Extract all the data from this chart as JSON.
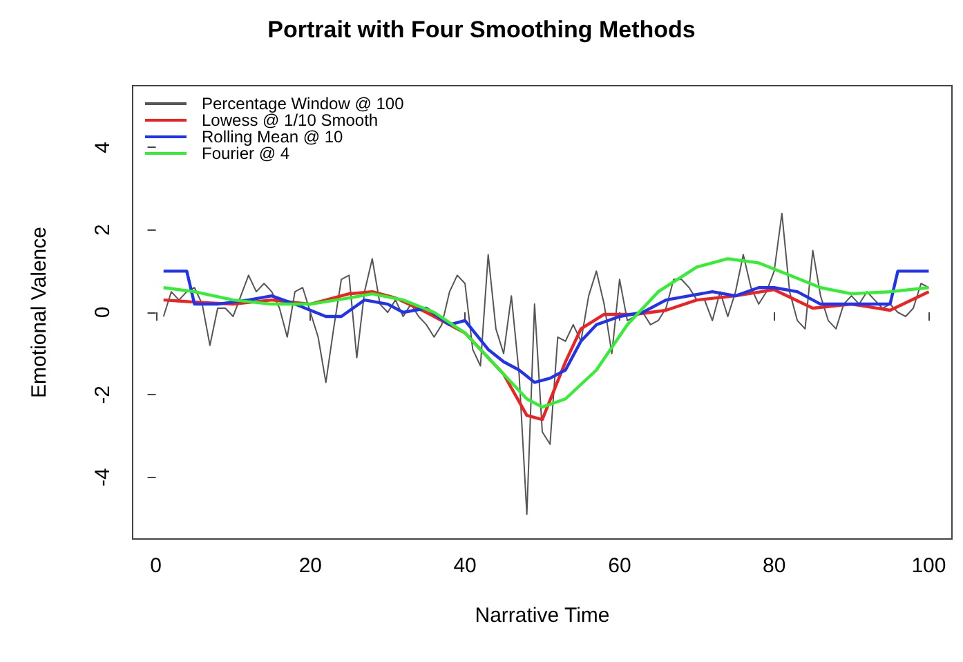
{
  "chart_data": {
    "type": "line",
    "title": "Portrait with Four Smoothing Methods",
    "xlabel": "Narrative Time",
    "ylabel": "Emotional Valence",
    "xlim": [
      -3,
      103
    ],
    "xticks": [
      0,
      20,
      40,
      60,
      80,
      100
    ],
    "ylim": [
      -5.5,
      5.5
    ],
    "yticks": [
      -4,
      -2,
      0,
      2,
      4
    ],
    "legend": "top left",
    "grid": false,
    "marker": "none",
    "line_style": "solid",
    "series": [
      {
        "name": "Percentage Window @ 100",
        "color": "#555555",
        "x": [
          1,
          2,
          3,
          4,
          5,
          6,
          7,
          8,
          9,
          10,
          11,
          12,
          13,
          14,
          15,
          16,
          17,
          18,
          19,
          20,
          21,
          22,
          23,
          24,
          25,
          26,
          27,
          28,
          29,
          30,
          31,
          32,
          33,
          34,
          35,
          36,
          37,
          38,
          39,
          40,
          41,
          42,
          43,
          44,
          45,
          46,
          47,
          48,
          49,
          50,
          51,
          52,
          53,
          54,
          55,
          56,
          57,
          58,
          59,
          60,
          61,
          62,
          63,
          64,
          65,
          66,
          67,
          68,
          69,
          70,
          71,
          72,
          73,
          74,
          75,
          76,
          77,
          78,
          79,
          80,
          81,
          82,
          83,
          84,
          85,
          86,
          87,
          88,
          89,
          90,
          91,
          92,
          93,
          94,
          95,
          96,
          97,
          98,
          99,
          100
        ],
        "values": [
          -0.1,
          0.5,
          0.3,
          0.5,
          0.6,
          0.2,
          -0.8,
          0.1,
          0.1,
          -0.1,
          0.4,
          0.9,
          0.5,
          0.7,
          0.5,
          0.1,
          -0.6,
          0.5,
          0.6,
          0,
          -0.6,
          -1.7,
          -0.4,
          0.8,
          0.9,
          -1.1,
          0.5,
          1.3,
          0.2,
          0,
          0.3,
          -0.1,
          0.2,
          -0.1,
          -0.3,
          -0.6,
          -0.3,
          0.5,
          0.9,
          0.7,
          -0.9,
          -1.3,
          1.4,
          -0.4,
          -1,
          0.4,
          -1.5,
          -4.9,
          0.2,
          -2.9,
          -3.2,
          -0.6,
          -0.7,
          -0.3,
          -0.7,
          0.4,
          1,
          0.2,
          -1,
          0.8,
          -0.2,
          -0.1,
          0,
          -0.3,
          -0.2,
          0.1,
          0.8,
          0.8,
          0.6,
          0.3,
          0.3,
          -0.2,
          0.5,
          -0.1,
          0.5,
          1.4,
          0.6,
          0.2,
          0.5,
          1,
          2.4,
          0.5,
          -0.2,
          -0.4,
          1.5,
          0.4,
          -0.2,
          -0.4,
          0.2,
          0.4,
          0.2,
          0.5,
          0.3,
          0.1,
          0.2,
          0,
          -0.1,
          0.1,
          0.7,
          0.6
        ]
      },
      {
        "name": "Lowess @ 1/10 Smooth",
        "color": "#ee2222",
        "x": [
          1,
          5,
          10,
          15,
          20,
          25,
          28,
          31,
          35,
          40,
          45,
          48,
          50,
          53,
          55,
          58,
          62,
          66,
          70,
          75,
          80,
          85,
          90,
          95,
          100
        ],
        "values": [
          0.3,
          0.25,
          0.2,
          0.3,
          0.2,
          0.45,
          0.5,
          0.35,
          0,
          -0.5,
          -1.5,
          -2.5,
          -2.6,
          -1.2,
          -0.4,
          -0.05,
          -0.05,
          0.05,
          0.3,
          0.4,
          0.55,
          0.1,
          0.2,
          0.05,
          0.5
        ]
      },
      {
        "name": "Rolling Mean @ 10",
        "color": "#2233ee",
        "x": [
          1,
          4,
          5,
          8,
          12,
          15,
          18,
          22,
          24,
          27,
          30,
          32,
          35,
          38,
          40,
          43,
          45,
          47,
          49,
          51,
          53,
          55,
          57,
          60,
          63,
          66,
          69,
          72,
          75,
          78,
          80,
          83,
          86,
          90,
          95,
          96,
          100
        ],
        "values": [
          1,
          1,
          0.2,
          0.2,
          0.3,
          0.4,
          0.2,
          -0.1,
          -0.1,
          0.3,
          0.2,
          0,
          0.1,
          -0.3,
          -0.2,
          -0.9,
          -1.2,
          -1.4,
          -1.7,
          -1.6,
          -1.4,
          -0.7,
          -0.3,
          -0.1,
          0,
          0.3,
          0.4,
          0.5,
          0.4,
          0.6,
          0.6,
          0.5,
          0.2,
          0.2,
          0.2,
          1,
          1
        ]
      },
      {
        "name": "Fourier @ 4",
        "color": "#33ee33",
        "x": [
          1,
          5,
          10,
          15,
          20,
          25,
          28,
          32,
          36,
          40,
          44,
          48,
          50,
          53,
          57,
          61,
          65,
          70,
          74,
          78,
          82,
          86,
          90,
          95,
          100
        ],
        "values": [
          0.6,
          0.5,
          0.3,
          0.2,
          0.2,
          0.35,
          0.45,
          0.3,
          0,
          -0.5,
          -1.3,
          -2.1,
          -2.3,
          -2.1,
          -1.4,
          -0.3,
          0.5,
          1.1,
          1.3,
          1.2,
          0.9,
          0.6,
          0.45,
          0.5,
          0.6
        ]
      }
    ]
  }
}
